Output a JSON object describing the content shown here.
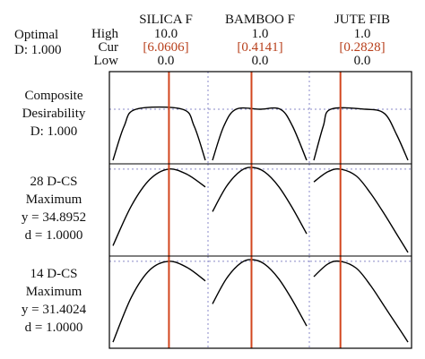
{
  "optimal": {
    "title": "Optimal",
    "d": "D: 1.000"
  },
  "row_labels": {
    "high": "High",
    "cur": "Cur",
    "low": "Low"
  },
  "factors": [
    {
      "name": "SILICA F",
      "high": "10.0",
      "cur": "[6.0606]",
      "low": "0.0"
    },
    {
      "name": "BAMBOO F",
      "high": "1.0",
      "cur": "[0.4141]",
      "low": "0.0"
    },
    {
      "name": "JUTE FIB",
      "high": "1.0",
      "cur": "[0.2828]",
      "low": "0.0"
    }
  ],
  "responses": [
    {
      "lines": [
        "Composite",
        "Desirability",
        "D: 1.000"
      ]
    },
    {
      "lines": [
        "28 D-CS",
        "Maximum",
        "y = 34.8952",
        "d = 1.0000"
      ]
    },
    {
      "lines": [
        "14 D-CS",
        "Maximum",
        "y = 31.4024",
        "d = 1.0000"
      ]
    }
  ],
  "colors": {
    "curve": "#000000",
    "current_line": "#d2461e",
    "reference": "#8a8ac8",
    "frame": "#000000"
  },
  "chart_data": {
    "type": "line",
    "x_current": [
      0.60606,
      0.4141,
      0.2828
    ],
    "panels": [
      {
        "row": 0,
        "col": 0,
        "y_ref": 0.6,
        "x": [
          0,
          0.12,
          0.25,
          0.75,
          0.88,
          1
        ],
        "y": [
          0,
          0.4,
          0.6,
          0.6,
          0.4,
          0
        ]
      },
      {
        "row": 0,
        "col": 1,
        "y_ref": 0.6,
        "x": [
          0,
          0.12,
          0.25,
          0.5,
          0.72,
          0.85,
          1
        ],
        "y": [
          0,
          0.4,
          0.6,
          0.6,
          0.6,
          0.4,
          0
        ]
      },
      {
        "row": 0,
        "col": 2,
        "y_ref": 0.6,
        "x": [
          0,
          0.1,
          0.18,
          0.55,
          0.75,
          0.88,
          1
        ],
        "y": [
          0,
          0.4,
          0.6,
          0.6,
          0.55,
          0.3,
          0
        ]
      },
      {
        "row": 1,
        "col": 0,
        "y_ref": 0.98,
        "x": [
          0,
          0.2,
          0.4,
          0.6,
          0.8,
          1
        ],
        "y": [
          0.08,
          0.55,
          0.86,
          0.98,
          0.92,
          0.77
        ]
      },
      {
        "row": 1,
        "col": 1,
        "y_ref": 0.98,
        "x": [
          0,
          0.15,
          0.3,
          0.42,
          0.55,
          0.7,
          0.85,
          1
        ],
        "y": [
          0.48,
          0.78,
          0.96,
          1.0,
          0.95,
          0.78,
          0.52,
          0.22
        ]
      },
      {
        "row": 1,
        "col": 2,
        "y_ref": 0.98,
        "x": [
          0,
          0.15,
          0.28,
          0.45,
          0.6,
          0.75,
          0.9,
          1
        ],
        "y": [
          0.83,
          0.95,
          0.98,
          0.9,
          0.7,
          0.45,
          0.18,
          0.0
        ]
      },
      {
        "row": 2,
        "col": 0,
        "y_ref": 0.98,
        "x": [
          0,
          0.2,
          0.4,
          0.6,
          0.8,
          1
        ],
        "y": [
          0.03,
          0.56,
          0.88,
          0.98,
          0.91,
          0.75
        ]
      },
      {
        "row": 2,
        "col": 1,
        "y_ref": 0.98,
        "x": [
          0,
          0.15,
          0.3,
          0.42,
          0.55,
          0.7,
          0.85,
          1
        ],
        "y": [
          0.48,
          0.78,
          0.96,
          1.0,
          0.95,
          0.78,
          0.52,
          0.22
        ]
      },
      {
        "row": 2,
        "col": 2,
        "y_ref": 0.98,
        "x": [
          0,
          0.15,
          0.28,
          0.45,
          0.6,
          0.75,
          0.9,
          1
        ],
        "y": [
          0.8,
          0.95,
          0.98,
          0.9,
          0.7,
          0.45,
          0.2,
          0.03
        ]
      }
    ]
  }
}
